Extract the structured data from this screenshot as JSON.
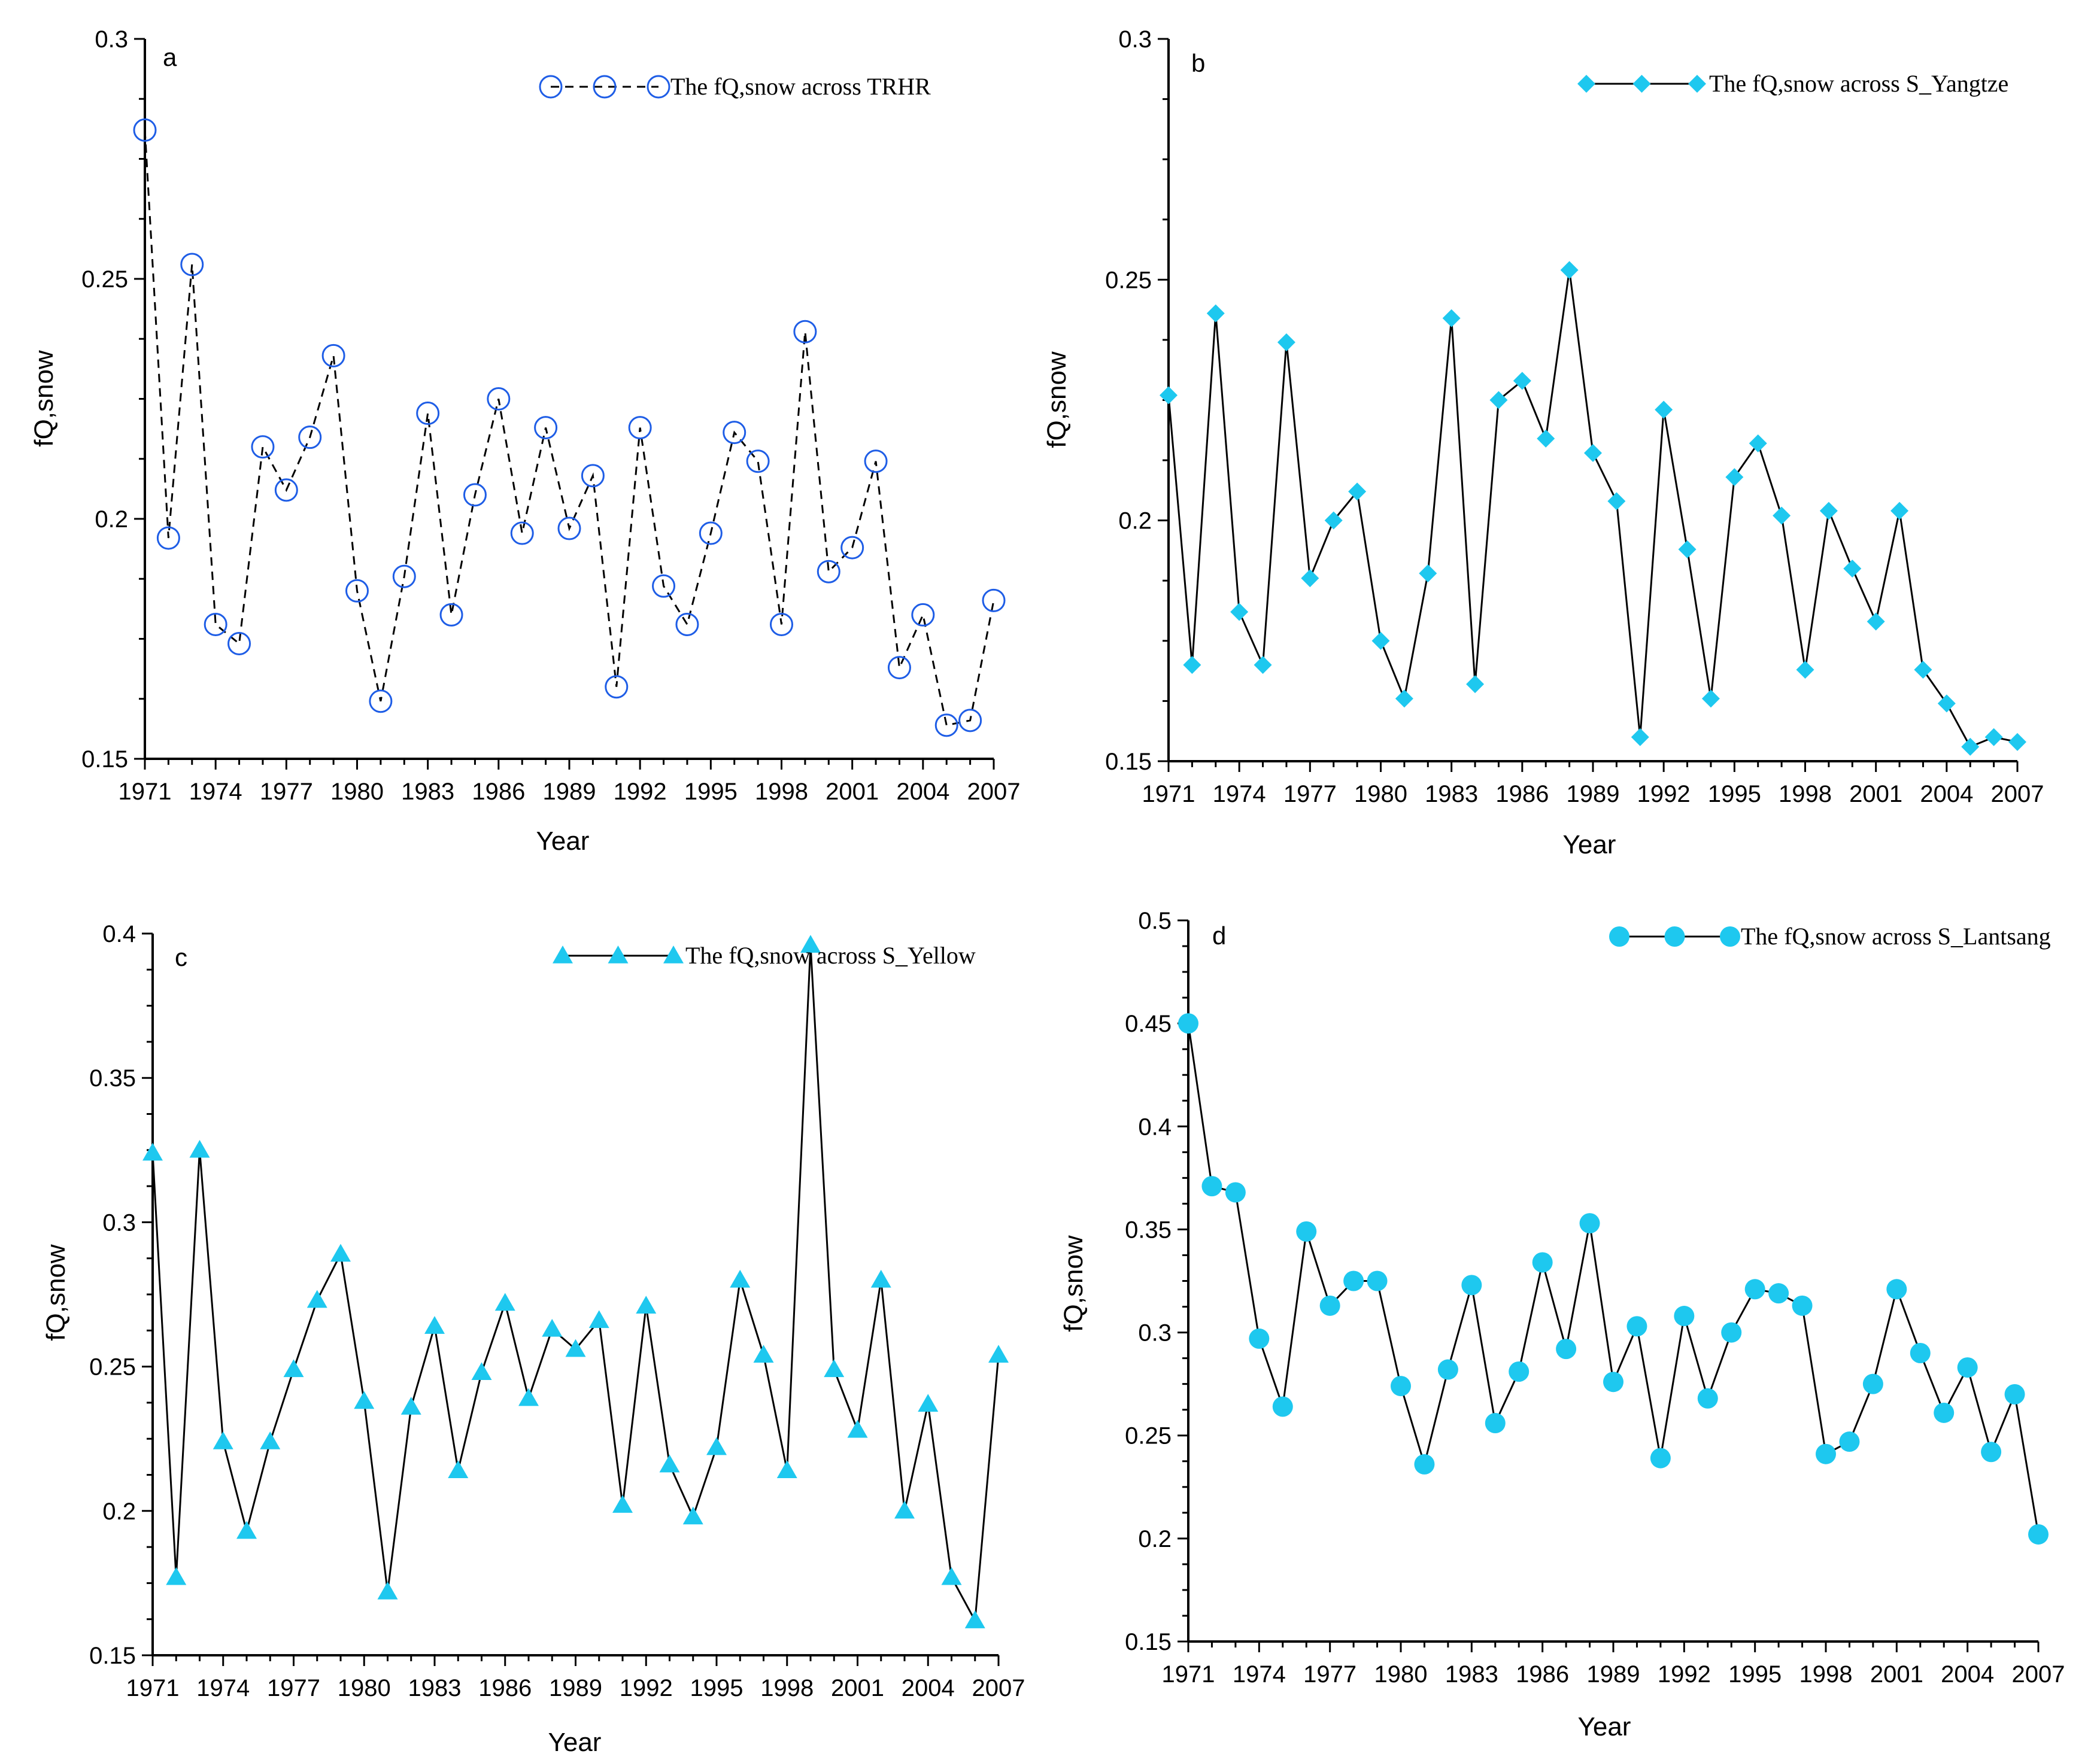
{
  "figure": {
    "background": "#ffffff",
    "marker_color": "#1ec8ef",
    "open_marker_color": "#1e5de6"
  },
  "chart_data": [
    {
      "panel_label": "a",
      "type": "line",
      "title": "",
      "xlabel": "Year",
      "ylabel": "fQ,snow",
      "legend": "The fQ,snow across TRHR",
      "legend_position": "top-right",
      "line_style": "dashed",
      "marker": "open-circle",
      "ylim": [
        0.15,
        0.3
      ],
      "yticks": [
        "0.15",
        "0.2",
        "0.25",
        "0.3"
      ],
      "xticks": [
        "1971",
        "1974",
        "1977",
        "1980",
        "1983",
        "1986",
        "1989",
        "1992",
        "1995",
        "1998",
        "2001",
        "2004",
        "2007"
      ],
      "x": [
        1971,
        1972,
        1973,
        1974,
        1975,
        1976,
        1977,
        1978,
        1979,
        1980,
        1981,
        1982,
        1983,
        1984,
        1985,
        1986,
        1987,
        1988,
        1989,
        1990,
        1991,
        1992,
        1993,
        1994,
        1995,
        1996,
        1997,
        1998,
        1999,
        2000,
        2001,
        2002,
        2003,
        2004,
        2005,
        2006,
        2007
      ],
      "values": [
        0.281,
        0.196,
        0.253,
        0.178,
        0.174,
        0.215,
        0.206,
        0.217,
        0.234,
        0.185,
        0.162,
        0.188,
        0.222,
        0.18,
        0.205,
        0.225,
        0.197,
        0.219,
        0.198,
        0.209,
        0.165,
        0.219,
        0.186,
        0.178,
        0.197,
        0.218,
        0.212,
        0.178,
        0.239,
        0.189,
        0.194,
        0.212,
        0.169,
        0.18,
        0.157,
        0.158,
        0.183
      ]
    },
    {
      "panel_label": "b",
      "type": "line",
      "title": "",
      "xlabel": "Year",
      "ylabel": "fQ,snow",
      "legend": "The fQ,snow across S_Yangtze",
      "legend_position": "top-right",
      "line_style": "solid",
      "marker": "diamond",
      "ylim": [
        0.15,
        0.3
      ],
      "yticks": [
        "0.15",
        "0.2",
        "0.25",
        "0.3"
      ],
      "xticks": [
        "1971",
        "1974",
        "1977",
        "1980",
        "1983",
        "1986",
        "1989",
        "1992",
        "1995",
        "1998",
        "2001",
        "2004",
        "2007"
      ],
      "x": [
        1971,
        1972,
        1973,
        1974,
        1975,
        1976,
        1977,
        1978,
        1979,
        1980,
        1981,
        1982,
        1983,
        1984,
        1985,
        1986,
        1987,
        1988,
        1989,
        1990,
        1991,
        1992,
        1993,
        1994,
        1995,
        1996,
        1997,
        1998,
        1999,
        2000,
        2001,
        2002,
        2003,
        2004,
        2005,
        2006,
        2007
      ],
      "values": [
        0.226,
        0.17,
        0.243,
        0.181,
        0.17,
        0.237,
        0.188,
        0.2,
        0.206,
        0.175,
        0.163,
        0.189,
        0.242,
        0.166,
        0.225,
        0.229,
        0.217,
        0.252,
        0.214,
        0.204,
        0.155,
        0.223,
        0.194,
        0.163,
        0.209,
        0.216,
        0.201,
        0.169,
        0.202,
        0.19,
        0.179,
        0.202,
        0.169,
        0.162,
        0.153,
        0.155,
        0.154
      ]
    },
    {
      "panel_label": "c",
      "type": "line",
      "title": "",
      "xlabel": "Year",
      "ylabel": "fQ,snow",
      "legend": "The fQ,snow across S_Yellow",
      "legend_position": "top-right",
      "line_style": "solid",
      "marker": "triangle",
      "ylim": [
        0.15,
        0.4
      ],
      "yticks": [
        "0.15",
        "0.2",
        "0.25",
        "0.3",
        "0.35",
        "0.4"
      ],
      "xticks": [
        "1971",
        "1974",
        "1977",
        "1980",
        "1983",
        "1986",
        "1989",
        "1992",
        "1995",
        "1998",
        "2001",
        "2004",
        "2007"
      ],
      "x": [
        1971,
        1972,
        1973,
        1974,
        1975,
        1976,
        1977,
        1978,
        1979,
        1980,
        1981,
        1982,
        1983,
        1984,
        1985,
        1986,
        1987,
        1988,
        1989,
        1990,
        1991,
        1992,
        1993,
        1994,
        1995,
        1996,
        1997,
        1998,
        1999,
        2000,
        2001,
        2002,
        2003,
        2004,
        2005,
        2006,
        2007
      ],
      "values": [
        0.324,
        0.177,
        0.325,
        0.224,
        0.193,
        0.224,
        0.249,
        0.273,
        0.289,
        0.238,
        0.172,
        0.236,
        0.264,
        0.214,
        0.248,
        0.272,
        0.239,
        0.263,
        0.256,
        0.266,
        0.202,
        0.271,
        0.216,
        0.198,
        0.222,
        0.28,
        0.254,
        0.214,
        0.396,
        0.249,
        0.228,
        0.28,
        0.2,
        0.237,
        0.177,
        0.162,
        0.254
      ]
    },
    {
      "panel_label": "d",
      "type": "line",
      "title": "",
      "xlabel": "Year",
      "ylabel": "fQ,snow",
      "legend": "The fQ,snow across S_Lantsang",
      "legend_position": "top-right",
      "line_style": "solid",
      "marker": "filled-circle",
      "ylim": [
        0.15,
        0.5
      ],
      "yticks": [
        "0.15",
        "0.2",
        "0.25",
        "0.3",
        "0.35",
        "0.4",
        "0.45",
        "0.5"
      ],
      "xticks": [
        "1971",
        "1974",
        "1977",
        "1980",
        "1983",
        "1986",
        "1989",
        "1992",
        "1995",
        "1998",
        "2001",
        "2004",
        "2007"
      ],
      "x": [
        1971,
        1972,
        1973,
        1974,
        1975,
        1976,
        1977,
        1978,
        1979,
        1980,
        1981,
        1982,
        1983,
        1984,
        1985,
        1986,
        1987,
        1988,
        1989,
        1990,
        1991,
        1992,
        1993,
        1994,
        1995,
        1996,
        1997,
        1998,
        1999,
        2000,
        2001,
        2002,
        2003,
        2004,
        2005,
        2006,
        2007
      ],
      "values": [
        0.45,
        0.371,
        0.368,
        0.297,
        0.264,
        0.349,
        0.313,
        0.325,
        0.325,
        0.274,
        0.236,
        0.282,
        0.323,
        0.256,
        0.281,
        0.334,
        0.292,
        0.353,
        0.276,
        0.303,
        0.239,
        0.308,
        0.268,
        0.3,
        0.321,
        0.319,
        0.313,
        0.241,
        0.247,
        0.275,
        0.321,
        0.29,
        0.261,
        0.283,
        0.242,
        0.27,
        0.202
      ]
    }
  ]
}
